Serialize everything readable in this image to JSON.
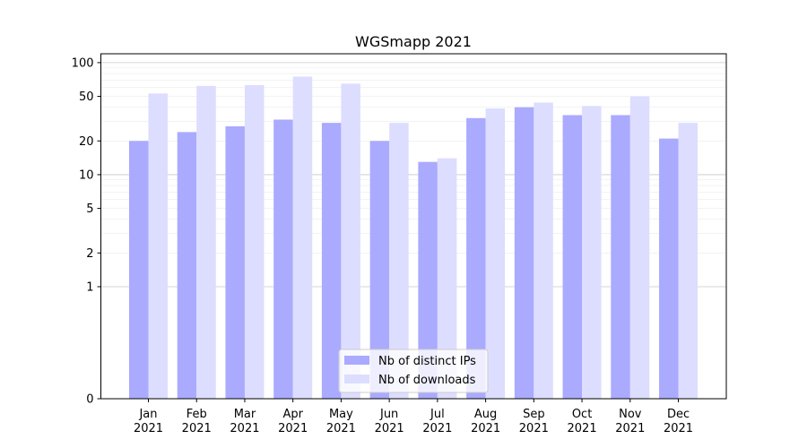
{
  "chart_data": {
    "type": "bar",
    "title": "WGSmapp 2021",
    "xlabel": "",
    "ylabel": "",
    "y_scale": "symlog",
    "ylim": [
      0,
      120
    ],
    "y_ticks": [
      0,
      1,
      2,
      5,
      10,
      20,
      50,
      100
    ],
    "y_tick_labels": [
      "0",
      "1",
      "2",
      "5",
      "10",
      "20",
      "50",
      "100"
    ],
    "grid": true,
    "legend_position": "bottom-center",
    "categories": [
      [
        "Jan",
        "2021"
      ],
      [
        "Feb",
        "2021"
      ],
      [
        "Mar",
        "2021"
      ],
      [
        "Apr",
        "2021"
      ],
      [
        "May",
        "2021"
      ],
      [
        "Jun",
        "2021"
      ],
      [
        "Jul",
        "2021"
      ],
      [
        "Aug",
        "2021"
      ],
      [
        "Sep",
        "2021"
      ],
      [
        "Oct",
        "2021"
      ],
      [
        "Nov",
        "2021"
      ],
      [
        "Dec",
        "2021"
      ]
    ],
    "series": [
      {
        "name": "Nb of distinct IPs",
        "color": "#aaaaff",
        "values": [
          20,
          24,
          27,
          31,
          29,
          20,
          13,
          32,
          40,
          34,
          34,
          21
        ]
      },
      {
        "name": "Nb of downloads",
        "color": "#ddddff",
        "values": [
          53,
          62,
          63,
          75,
          65,
          29,
          14,
          39,
          44,
          41,
          50,
          29
        ]
      }
    ]
  }
}
